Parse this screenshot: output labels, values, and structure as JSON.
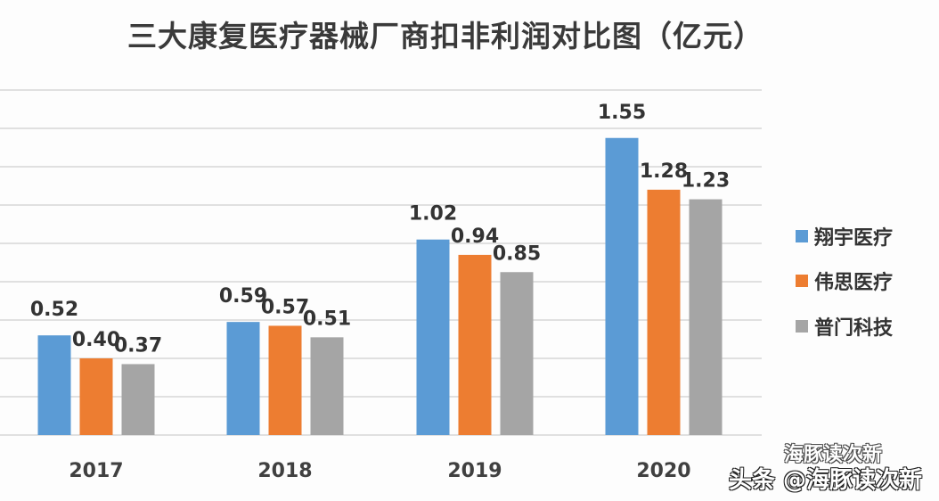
{
  "chart_data": {
    "type": "bar",
    "title": "三大康复医疗器械厂商扣非利润对比图（亿元）",
    "categories": [
      "2017",
      "2018",
      "2019",
      "2020"
    ],
    "series": [
      {
        "name": "翔宇医疗",
        "color": "#5b9bd5",
        "values": [
          0.52,
          0.59,
          1.02,
          1.55
        ]
      },
      {
        "name": "伟思医疗",
        "color": "#ed7d31",
        "values": [
          0.4,
          0.57,
          0.94,
          1.28
        ]
      },
      {
        "name": "普门科技",
        "color": "#a5a5a5",
        "values": [
          0.37,
          0.51,
          0.85,
          1.23
        ]
      }
    ],
    "ylim": [
      0,
      1.8
    ],
    "y_gridline_step": 0.2,
    "grid": true,
    "y_tick_labels_shown": false,
    "legend_position": "right",
    "data_labels": true
  },
  "watermark": {
    "line1": "海豚读次新",
    "line2": "头条 @海豚读次新"
  }
}
